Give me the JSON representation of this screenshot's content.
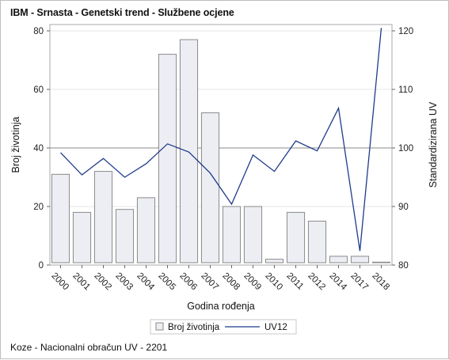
{
  "title": "IBM - Srnasta - Genetski trend - Službene ocjene",
  "footnote": "Koze - Nacionalni obračun UV - 2201",
  "colors": {
    "bar_fill": "#eceef4",
    "bar_stroke": "#8a8a8a",
    "line": "#1f3b8c",
    "grid": "#e6e6e6",
    "reference": "#8a8a8a",
    "frame": "#a8a8a8"
  },
  "chart_data": {
    "type": "bar+line",
    "title": "IBM - Srnasta - Genetski trend - Službene ocjene",
    "xlabel": "Godina rođenja",
    "ylabel_left": "Broj životinja",
    "ylabel_right": "Standardizirana UV",
    "categories": [
      "2000",
      "2001",
      "2002",
      "2003",
      "2004",
      "2005",
      "2006",
      "2007",
      "2008",
      "2009",
      "2010",
      "2011",
      "2012",
      "2014",
      "2017",
      "2018"
    ],
    "series": [
      {
        "name": "Broj životinja",
        "type": "bar",
        "axis": "left",
        "values": [
          31,
          18,
          32,
          19,
          23,
          72,
          77,
          52,
          20,
          20,
          2,
          18,
          15,
          3,
          3,
          1
        ]
      },
      {
        "name": "UV12",
        "type": "line",
        "axis": "right",
        "values": [
          99.2,
          95.4,
          98.2,
          95.0,
          97.3,
          100.7,
          99.3,
          95.7,
          90.4,
          98.8,
          96.0,
          101.2,
          99.5,
          106.8,
          82.4,
          120.5
        ]
      }
    ],
    "ylim_left": [
      0,
      80
    ],
    "ylim_right": [
      80,
      120
    ],
    "yticks_left": [
      0,
      20,
      40,
      60,
      80
    ],
    "yticks_right": [
      80,
      90,
      100,
      110,
      120
    ],
    "reference_line_right": 100,
    "grid": true,
    "legend_placement": "bottom"
  }
}
